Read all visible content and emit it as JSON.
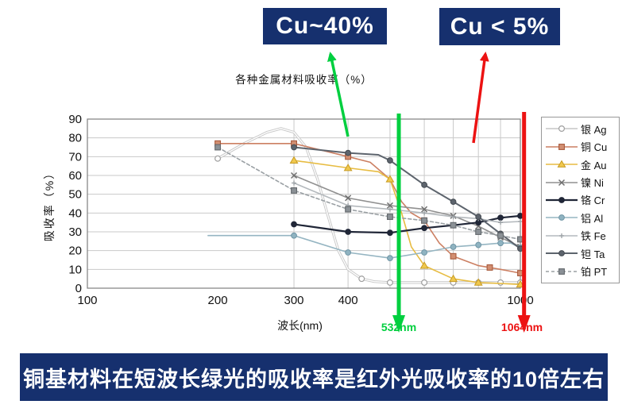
{
  "callouts": {
    "green_box": "Cu~40%",
    "red_box": "Cu < 5%"
  },
  "banner": {
    "text": "铜基材料在短波长绿光的吸收率是红外光吸收率的10倍左右"
  },
  "colors": {
    "navy": "#16306e",
    "green": "#00cf3f",
    "red": "#ec1212",
    "grid": "#c9c9c9",
    "plot_border": "#7f7f7f"
  },
  "chart_data": {
    "type": "line",
    "title": "各种金属材料吸收率（%）",
    "xlabel": "波长(nm)",
    "ylabel": "吸收率（%）",
    "x_scale": "log",
    "xlim": [
      100,
      1000
    ],
    "ylim": [
      0,
      90
    ],
    "x_ticks": [
      100,
      200,
      300,
      400,
      1000
    ],
    "x_gridlines": [
      300,
      400,
      500,
      600,
      700,
      800,
      900
    ],
    "y_ticks": [
      0,
      10,
      20,
      30,
      40,
      50,
      60,
      70,
      80,
      90
    ],
    "grid": true,
    "legend_position": "right",
    "annotations": {
      "green_line_label": "532nm",
      "green_line_nm": 524,
      "red_line_label": "1064nm",
      "red_line_nm": 1020
    },
    "series": [
      {
        "name": "Ag",
        "label": "银 Ag",
        "color": "#c6c6c6",
        "marker": "circle-open",
        "mfill": "#ffffff",
        "mstroke": "#9e9e9e",
        "double": true,
        "x": [
          200,
          230,
          260,
          280,
          300,
          320,
          340,
          360,
          380,
          400,
          430,
          460,
          500,
          600,
          700,
          800,
          900,
          1000
        ],
        "y": [
          69,
          77,
          83,
          85,
          83,
          75,
          58,
          38,
          20,
          10,
          5,
          3.5,
          3,
          3,
          3,
          3,
          3,
          3
        ],
        "mx": [
          200,
          430,
          500,
          600,
          700,
          800,
          900,
          1000
        ],
        "my": [
          69,
          5,
          3,
          3,
          3,
          3,
          3,
          3
        ]
      },
      {
        "name": "Cu",
        "label": "铜 Cu",
        "color": "#cc7f62",
        "marker": "square",
        "mfill": "#d28f72",
        "mstroke": "#a85a3d",
        "x": [
          200,
          300,
          400,
          450,
          500,
          532,
          560,
          600,
          650,
          700,
          800,
          900,
          1000
        ],
        "y": [
          77,
          77,
          70,
          67,
          58,
          46,
          40,
          36,
          24,
          17,
          12,
          10,
          8
        ],
        "mx": [
          200,
          300,
          400,
          600,
          700,
          850,
          1000
        ],
        "my": [
          77,
          77,
          70,
          36,
          17,
          11,
          8
        ]
      },
      {
        "name": "Au",
        "label": "金 Au",
        "color": "#e7bc42",
        "marker": "triangle",
        "mfill": "#f0c84e",
        "mstroke": "#c79b22",
        "x": [
          300,
          400,
          470,
          500,
          532,
          560,
          600,
          700,
          800,
          900,
          1000
        ],
        "y": [
          68,
          64,
          62,
          58,
          40,
          22,
          12,
          5,
          3,
          2.5,
          2
        ],
        "mx": [
          300,
          400,
          500,
          600,
          700,
          800,
          1000
        ],
        "my": [
          68,
          64,
          58,
          12,
          5,
          3,
          2
        ]
      },
      {
        "name": "Ni",
        "label": "镍 Ni",
        "color": "#909090",
        "marker": "x",
        "mfill": "none",
        "mstroke": "#6e6e6e",
        "x": [
          300,
          400,
          500,
          600,
          700,
          800,
          900,
          1000
        ],
        "y": [
          60,
          48,
          44,
          42,
          38.5,
          33,
          27,
          22
        ]
      },
      {
        "name": "Cr",
        "label": "铬 Cr",
        "color": "#202637",
        "marker": "circle",
        "mfill": "#202637",
        "mstroke": "#202637",
        "width": 2.2,
        "x": [
          300,
          400,
          500,
          600,
          700,
          800,
          900,
          1000
        ],
        "y": [
          34,
          30,
          29.5,
          32,
          33.5,
          35,
          37.5,
          38.5
        ]
      },
      {
        "name": "Al",
        "label": "铝 Al",
        "color": "#95b5c2",
        "marker": "circle",
        "mfill": "#8fb3c1",
        "mstroke": "#6f95a5",
        "x": [
          190,
          300,
          400,
          500,
          600,
          700,
          800,
          900,
          950,
          1000
        ],
        "y": [
          28,
          28,
          19,
          16,
          19,
          22,
          23,
          24,
          24,
          21.5
        ],
        "mx": [
          300,
          400,
          500,
          600,
          700,
          800,
          900,
          1000
        ],
        "my": [
          28,
          19,
          16,
          19,
          22,
          23,
          24,
          21.5
        ]
      },
      {
        "name": "Fe",
        "label": "铁 Fe",
        "color": "#b4b9bd",
        "marker": "plus",
        "mfill": "none",
        "mstroke": "#9aa0a4",
        "x": [
          300,
          400,
          500,
          600,
          700,
          800,
          900,
          1000
        ],
        "y": [
          56,
          44,
          42,
          40,
          38,
          37,
          35,
          35.5
        ]
      },
      {
        "name": "Ta",
        "label": "钽 Ta",
        "color": "#5d646d",
        "marker": "circle",
        "mfill": "#5d646d",
        "mstroke": "#454b52",
        "width": 2,
        "x": [
          300,
          400,
          470,
          500,
          600,
          700,
          800,
          900,
          1000
        ],
        "y": [
          75,
          72,
          71,
          68,
          55,
          46,
          38,
          29,
          21
        ],
        "mx": [
          300,
          400,
          500,
          600,
          700,
          800,
          900,
          1000
        ],
        "my": [
          75,
          72,
          68,
          55,
          46,
          38,
          29,
          21
        ]
      },
      {
        "name": "Pt",
        "label": "铂 PT",
        "color": "#9aa0a4",
        "marker": "square",
        "mfill": "#8b9196",
        "mstroke": "#63686c",
        "dash": "4,3",
        "x": [
          200,
          300,
          400,
          500,
          600,
          700,
          800,
          900,
          1000
        ],
        "y": [
          75,
          52,
          42,
          38,
          36,
          33.5,
          30,
          28,
          26
        ]
      }
    ]
  }
}
